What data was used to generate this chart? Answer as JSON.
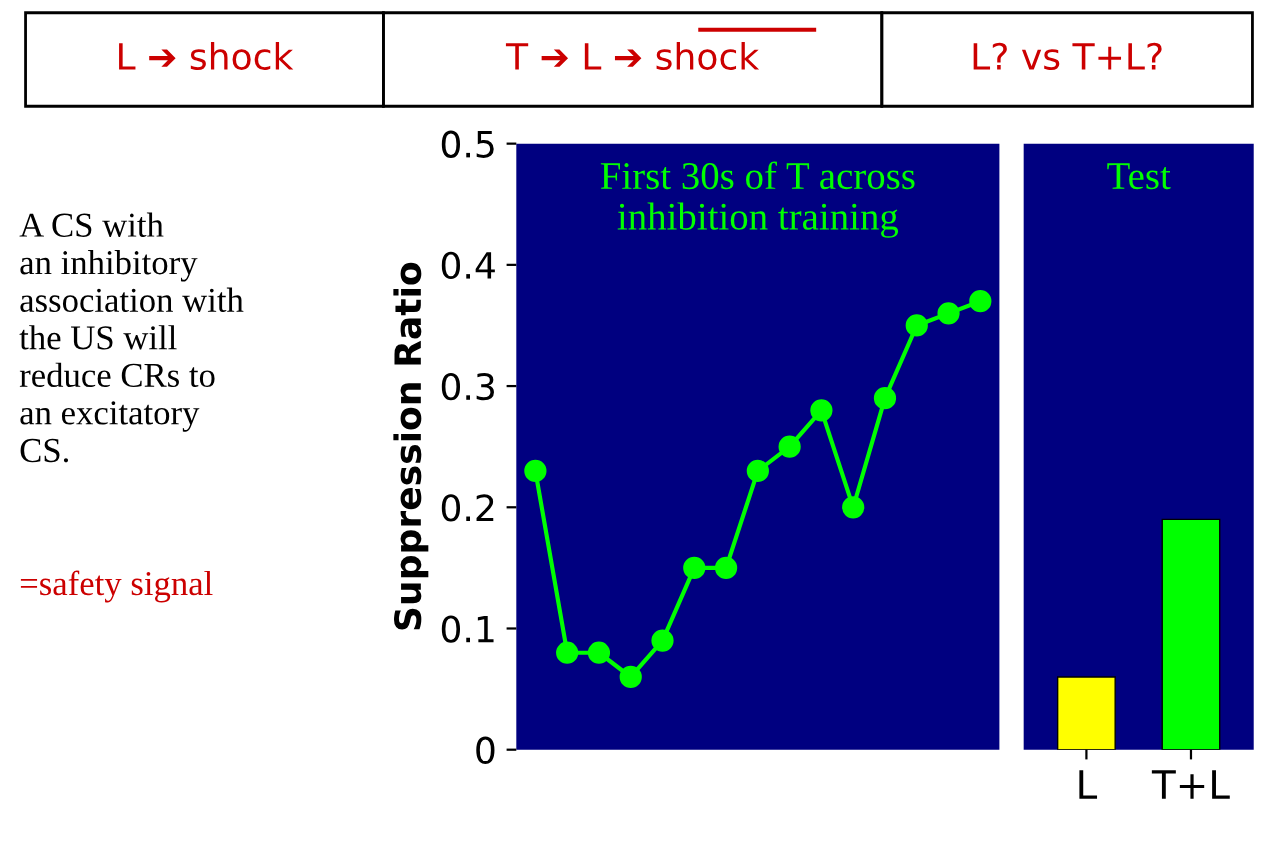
{
  "chart_data": [
    {
      "type": "line",
      "title": "First 30s of T across\ninhibition training",
      "ylabel": "Suppression Ratio",
      "categories": [
        null,
        null,
        null,
        null,
        null,
        null,
        null,
        null,
        null,
        null,
        null,
        null,
        null,
        null,
        null
      ],
      "series": [
        {
          "color": "#00ff00",
          "values": [
            0.23,
            0.08,
            0.08,
            0.06,
            0.09,
            0.15,
            0.15,
            0.23,
            0.25,
            0.28,
            0.2,
            0.29,
            0.35,
            0.36,
            0.37
          ]
        }
      ],
      "marker": "circle",
      "line_style": "solid",
      "ylim": [
        0,
        0.5
      ],
      "yticks": [
        0,
        0.1,
        0.2,
        0.3,
        0.4,
        0.5
      ],
      "grid": false,
      "tick_labels": "y",
      "annotations": [
        "L ➔ shock",
        "T ➔ L ➔ shock",
        "L? vs T+L?",
        "A CS with\nan inhibitory\nassociation with\nthe US will\nreduce CRs to\nan excitatory\nCS.",
        "=safety signal"
      ]
    },
    {
      "type": "bar",
      "title": "Test",
      "categories": [
        "L",
        "T+L"
      ],
      "values": [
        0.06,
        0.19
      ],
      "colors": [
        "#ffff00",
        "#00ff00"
      ],
      "ylim": [
        0,
        0.5
      ],
      "yticks": [
        0,
        0.1,
        0.2,
        0.3,
        0.4,
        0.5
      ],
      "grid": false,
      "tick_labels": "x"
    }
  ]
}
